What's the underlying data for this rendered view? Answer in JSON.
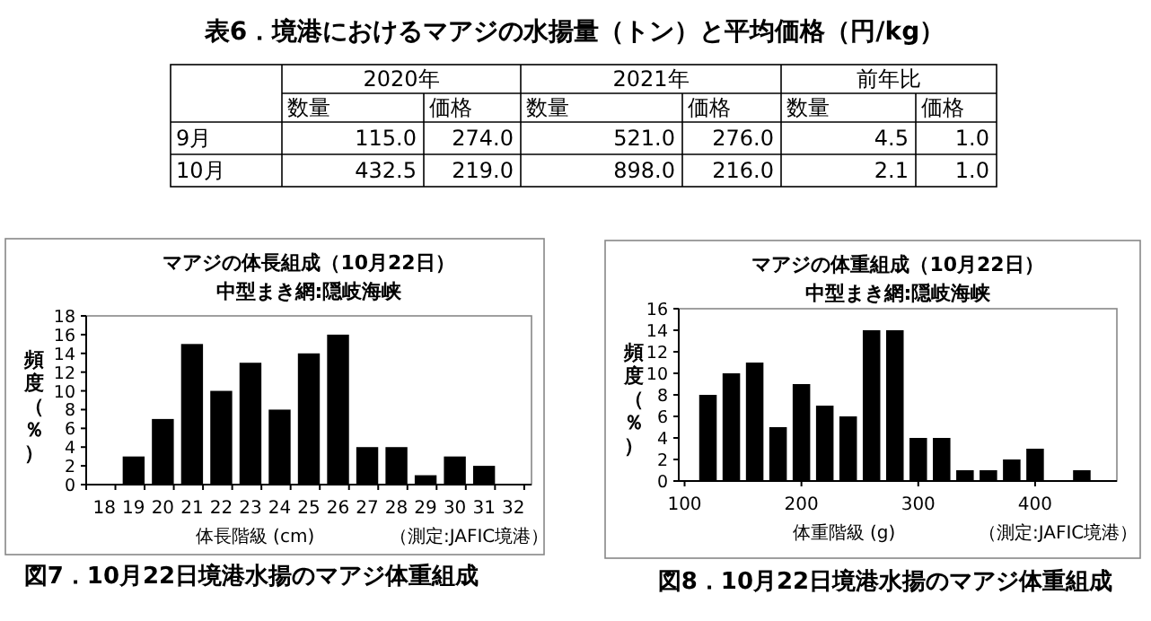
{
  "chart_data": [
    {
      "type": "other",
      "title": "表6．境港におけるマアジの水揚量（トン）と平均価格（円/kg）",
      "annotations": [
        "2020年",
        "2021年",
        "前年比"
      ],
      "categories": [
        "数量",
        "価格",
        "数量",
        "価格",
        "数量",
        "価格"
      ],
      "y_categories": [
        "9月",
        "10月"
      ],
      "cells": [
        [
          "115.0",
          "274.0",
          "521.0",
          "276.0",
          "4.5",
          "1.0"
        ],
        [
          "432.5",
          "219.0",
          "898.0",
          "216.0",
          "2.1",
          "1.0"
        ]
      ]
    },
    {
      "type": "bar",
      "title": "マアジの体長組成（10月22日）",
      "subtitle": "中型まき網:隠岐海峡",
      "xlabel": "体長階級 (cm)",
      "ylabel": "頻度（％）",
      "annotations": [
        "（測定:JAFIC境港）",
        "図7．10月22日境港水揚のマアジ体重組成"
      ],
      "categories": [
        "18",
        "19",
        "20",
        "21",
        "22",
        "23",
        "24",
        "25",
        "26",
        "27",
        "28",
        "29",
        "30",
        "31",
        "32"
      ],
      "values": [
        0,
        3,
        7,
        15,
        10,
        13,
        8,
        14,
        16,
        4,
        4,
        1,
        3,
        2,
        0
      ],
      "color": "#000000",
      "ylim": [
        0,
        18
      ],
      "yticks": [
        0,
        2,
        4,
        6,
        8,
        10,
        12,
        14,
        16,
        18
      ]
    },
    {
      "type": "bar",
      "title": "マアジの体重組成（10月22日）",
      "subtitle": "中型まき網:隠岐海峡",
      "xlabel": "体重階級 (g)",
      "ylabel": "頻度（％）",
      "annotations": [
        "（測定:JAFIC境港）",
        "図8．10月22日境港水揚のマアジ体重組成"
      ],
      "x": [
        120,
        140,
        160,
        180,
        200,
        220,
        240,
        260,
        280,
        300,
        320,
        340,
        360,
        380,
        400,
        440
      ],
      "values": [
        8,
        10,
        11,
        5,
        9,
        7,
        6,
        14,
        14,
        4,
        4,
        1,
        1,
        2,
        3,
        1
      ],
      "color": "#000000",
      "xlim": [
        95,
        470
      ],
      "xticks": [
        100,
        200,
        300,
        400
      ],
      "ylim": [
        0,
        16
      ],
      "yticks": [
        0,
        2,
        4,
        6,
        8,
        10,
        12,
        14,
        16
      ]
    }
  ]
}
